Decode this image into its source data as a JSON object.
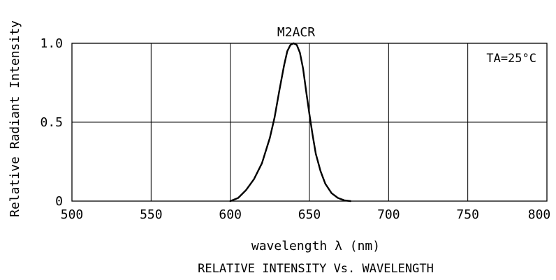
{
  "chart_data": {
    "type": "line",
    "title": "RELATIVE INTENSITY Vs. WAVELENGTH",
    "series_label": "M2ACR",
    "annotation": "TA=25°C",
    "xlabel": "wavelength λ (nm)",
    "ylabel": "Relative Radiant Intensity",
    "xlim": [
      500,
      800
    ],
    "ylim": [
      0,
      1.0
    ],
    "grid": true,
    "x_ticks": [
      500,
      550,
      600,
      650,
      700,
      750,
      800
    ],
    "x_tick_labels": [
      "500",
      "550",
      "600",
      "650",
      "700",
      "750",
      "800"
    ],
    "y_ticks": [
      0,
      0.5,
      1.0
    ],
    "y_tick_labels": [
      "0",
      "0.5",
      "1.0"
    ],
    "series": [
      {
        "x": [
          600,
          605,
          610,
          615,
          620,
          625,
          628,
          631,
          634,
          636,
          638,
          640,
          642,
          644,
          646,
          648,
          650,
          652,
          654,
          657,
          660,
          664,
          668,
          672,
          676
        ],
        "y": [
          0,
          0.02,
          0.07,
          0.14,
          0.24,
          0.4,
          0.53,
          0.7,
          0.86,
          0.95,
          0.99,
          1.0,
          0.99,
          0.94,
          0.84,
          0.69,
          0.55,
          0.42,
          0.3,
          0.19,
          0.11,
          0.05,
          0.02,
          0.005,
          0
        ]
      }
    ],
    "line_color": "#000000"
  }
}
